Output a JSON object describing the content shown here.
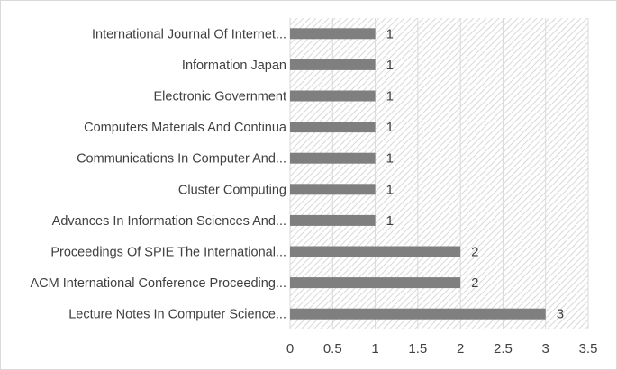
{
  "chart_data": {
    "type": "bar",
    "orientation": "horizontal",
    "categories": [
      "International Journal Of Internet...",
      "Information Japan",
      "Electronic Government",
      "Computers Materials And Continua",
      "Communications In Computer And...",
      "Cluster Computing",
      "Advances In Information Sciences And...",
      "Proceedings Of SPIE The International...",
      "ACM International Conference Proceeding...",
      "Lecture Notes In Computer Science..."
    ],
    "values": [
      1,
      1,
      1,
      1,
      1,
      1,
      1,
      2,
      2,
      3
    ],
    "data_labels": [
      "1",
      "1",
      "1",
      "1",
      "1",
      "1",
      "1",
      "2",
      "2",
      "3"
    ],
    "xlim": [
      0,
      3.5
    ],
    "x_ticks": [
      "0",
      "0.5",
      "1",
      "1.5",
      "2",
      "2.5",
      "3",
      "3.5"
    ],
    "title": "",
    "xlabel": "",
    "ylabel": "",
    "grid": "vertical",
    "plot_background": "diagonal-hatch",
    "legend": "none",
    "colors": {
      "bar": "#7f7f7f",
      "grid": "#d9d9d9",
      "hatch": "#d9d9d9",
      "text": "#404040"
    }
  }
}
